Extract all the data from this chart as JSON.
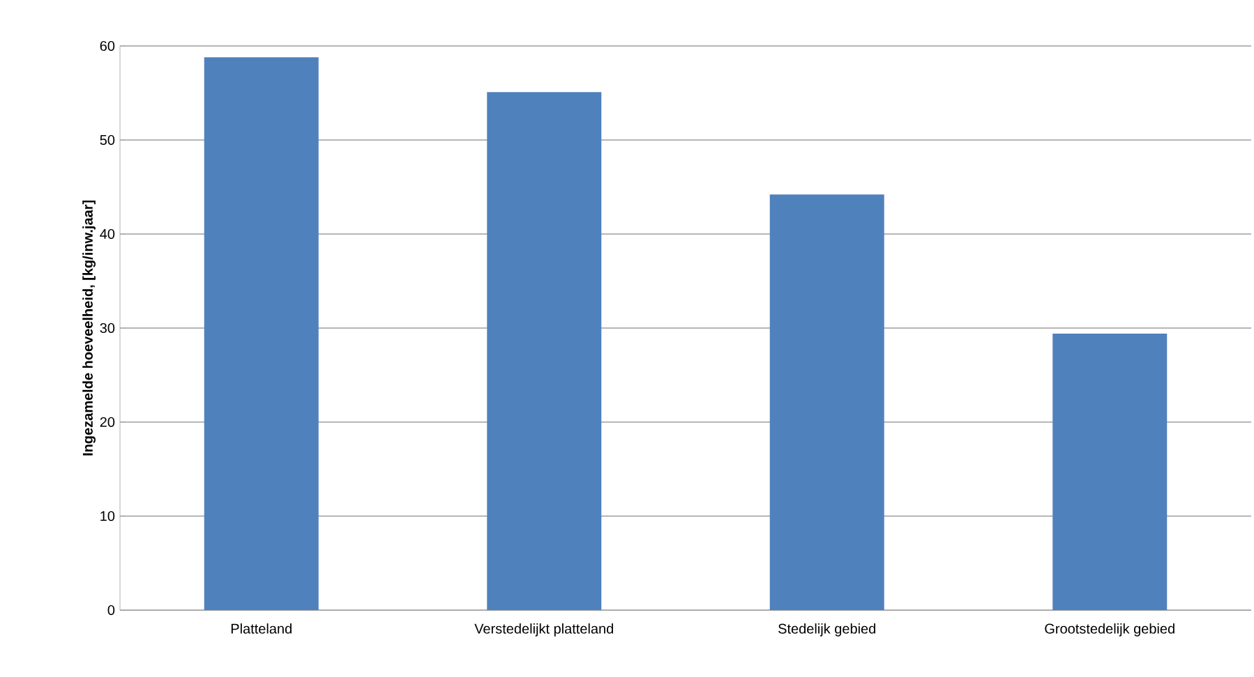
{
  "chart_data": {
    "type": "bar",
    "ylabel": "Ingezamelde hoeveelheid, [kg/inw.jaar]",
    "categories": [
      "Platteland",
      "Verstedelijkt platteland",
      "Stedelijk gebied",
      "Grootstedelijk gebied"
    ],
    "values": [
      58.8,
      55.1,
      44.2,
      29.4
    ],
    "color": "#4f81bd",
    "ylim": [
      0,
      60
    ],
    "yticks": [
      0,
      10,
      20,
      30,
      40,
      50,
      60
    ],
    "grid": "y"
  }
}
